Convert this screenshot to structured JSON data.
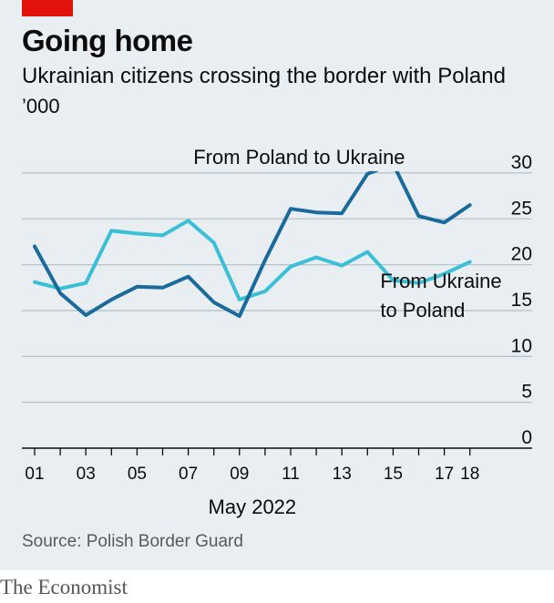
{
  "header": {
    "title": "Going home",
    "subtitle": "Ukrainian citizens crossing the border with Poland",
    "unit": "’000"
  },
  "footer": {
    "source": "Source: Polish Border Guard",
    "brand": "The Economist"
  },
  "colors": {
    "accent": "#e3120b",
    "poland_to_ukraine": "#1a6a9c",
    "ukraine_to_poland": "#39c0d6",
    "background": "#e9eef2",
    "grid": "#b7c2ca"
  },
  "chart_data": {
    "type": "line",
    "title": "Going home",
    "subtitle": "Ukrainian citizens crossing the border with Poland",
    "ylabel": "’000",
    "xlabel": "May 2022",
    "ylim": [
      0,
      30
    ],
    "yticks": [
      "0",
      "5",
      "10",
      "15",
      "20",
      "25",
      "30"
    ],
    "y_axis_side": "right",
    "grid": true,
    "x": [
      1,
      2,
      3,
      4,
      5,
      6,
      7,
      8,
      9,
      10,
      11,
      12,
      13,
      14,
      15,
      16,
      17,
      18
    ],
    "xticks": [
      "01",
      "03",
      "05",
      "07",
      "09",
      "11",
      "13",
      "15",
      "17",
      "18"
    ],
    "xtick_values": [
      1,
      3,
      5,
      7,
      9,
      11,
      13,
      15,
      17,
      18
    ],
    "series": [
      {
        "name": "From Poland to Ukraine",
        "color": "#1a6a9c",
        "values": [
          22.0,
          16.9,
          14.5,
          16.2,
          17.6,
          17.5,
          18.7,
          15.9,
          14.4,
          20.5,
          26.1,
          25.7,
          25.6,
          29.9,
          31.0,
          25.3,
          24.6,
          26.5
        ]
      },
      {
        "name": "From Ukraine to Poland",
        "color": "#39c0d6",
        "values": [
          18.1,
          17.4,
          18.0,
          23.7,
          23.4,
          23.2,
          24.8,
          22.4,
          16.2,
          17.1,
          19.8,
          20.8,
          19.9,
          21.4,
          18.3,
          18.0,
          19.0,
          20.3
        ]
      }
    ],
    "labels": [
      {
        "series": 0,
        "lines": [
          "From Poland to Ukraine"
        ],
        "x": 7.2,
        "y": 30.0
      },
      {
        "series": 1,
        "lines": [
          "From Ukraine",
          "to Poland"
        ],
        "x": 14.5,
        "y": 16.5
      }
    ]
  }
}
